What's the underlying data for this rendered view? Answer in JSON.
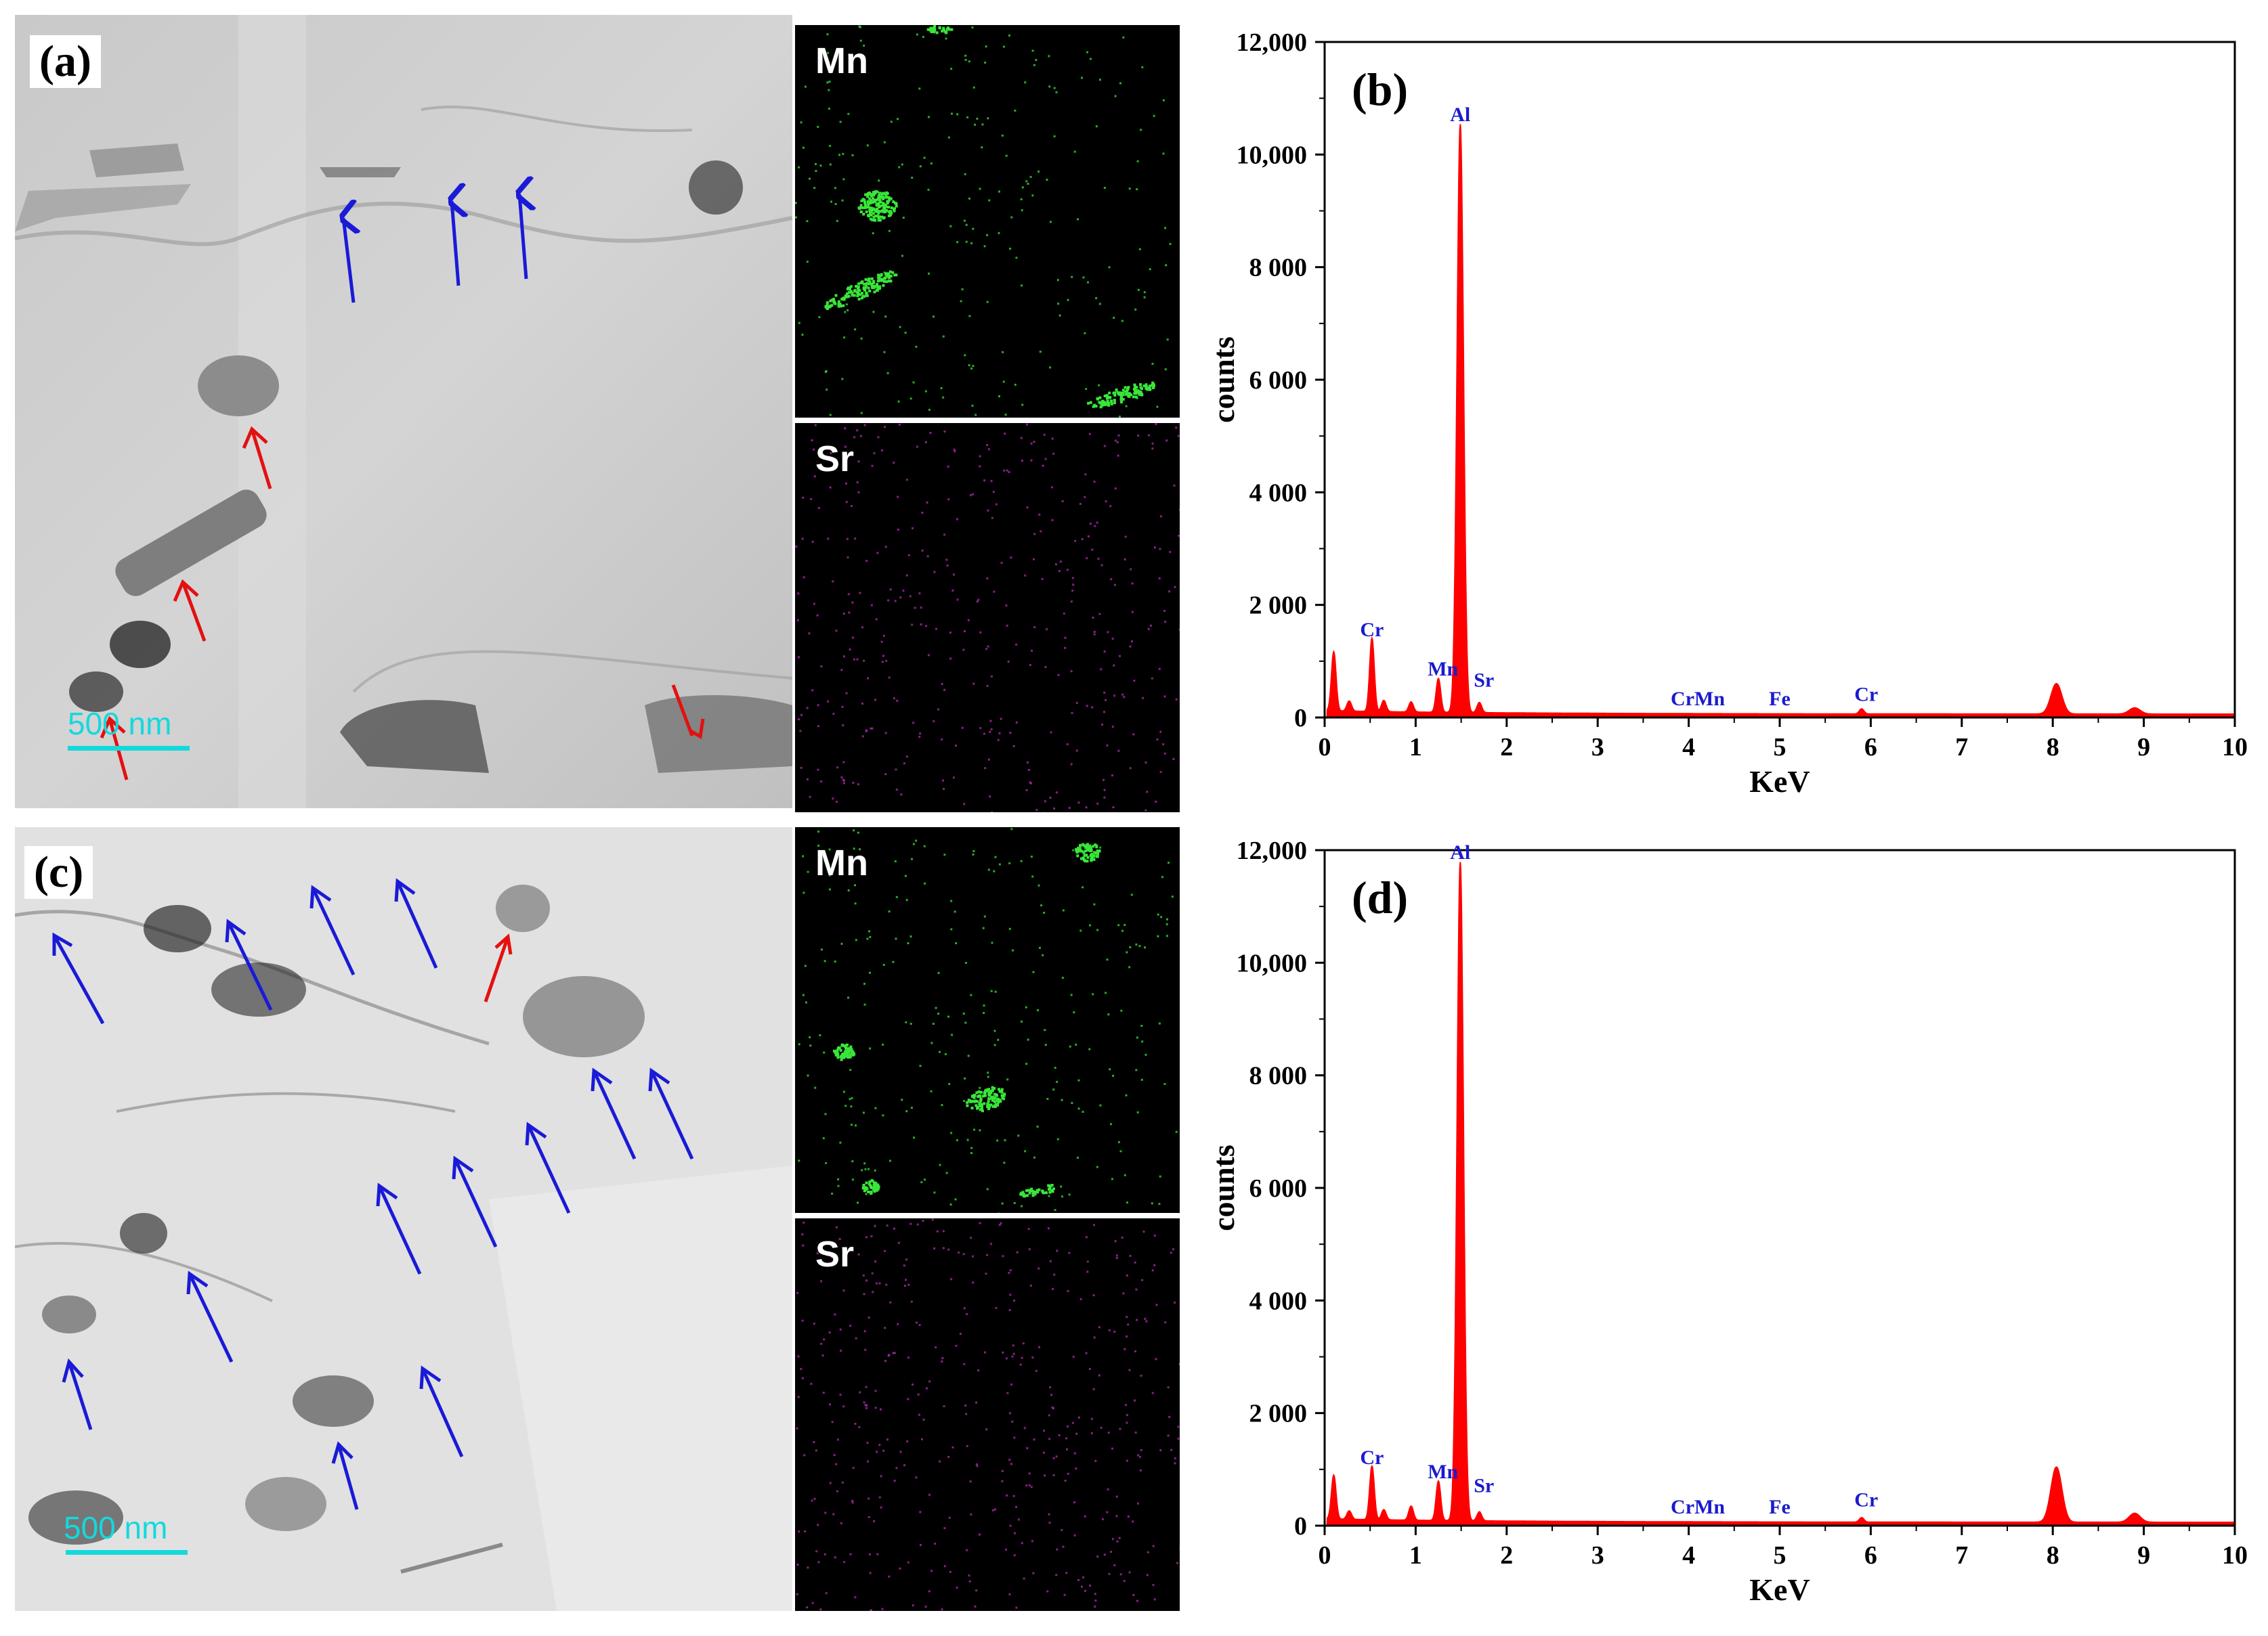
{
  "figure": {
    "panels": {
      "a": {
        "label": "(a)",
        "scale_bar": "500 nm"
      },
      "c": {
        "label": "(c)",
        "scale_bar": "500 nm"
      }
    },
    "maps": {
      "top_mn": "Mn",
      "top_sr": "Sr",
      "bottom_mn": "Mn",
      "bottom_sr": "Sr"
    },
    "colors": {
      "blue_arrow": "#1a1ad8",
      "red_arrow": "#e41010",
      "scale_bar": "#13d9dd",
      "mn_map_dot": "#39e639",
      "sr_map_dot": "#b52bb5",
      "spectrum_fill": "#ff0000",
      "peak_label": "#1a1ad0"
    }
  },
  "chart_data": [
    {
      "panel_label": "(b)",
      "type": "area",
      "xlabel": "KeV",
      "ylabel": "counts",
      "xlim": [
        0,
        10
      ],
      "ylim": [
        0,
        12000
      ],
      "x_ticks": [
        "0",
        "1",
        "2",
        "3",
        "4",
        "5",
        "6",
        "7",
        "8",
        "9",
        "10"
      ],
      "y_ticks": [
        "0",
        "2 000",
        "4 000",
        "6 000",
        "8 000",
        "10,000",
        "12,000"
      ],
      "peaks": [
        {
          "x": 0.1,
          "y": 1050
        },
        {
          "x": 0.27,
          "y": 180
        },
        {
          "x": 0.52,
          "y": 1300
        },
        {
          "x": 0.65,
          "y": 200
        },
        {
          "x": 0.95,
          "y": 180
        },
        {
          "x": 1.25,
          "y": 600
        },
        {
          "x": 1.49,
          "y": 10450
        },
        {
          "x": 1.7,
          "y": 180
        },
        {
          "x": 5.9,
          "y": 90
        },
        {
          "x": 8.04,
          "y": 540
        },
        {
          "x": 8.9,
          "y": 110
        }
      ],
      "annotations": [
        {
          "text": "Al",
          "x": 1.49,
          "y": 10450
        },
        {
          "text": "Cr",
          "x": 0.52,
          "y": 1300
        },
        {
          "text": "Mn",
          "x": 1.3,
          "y": 600
        },
        {
          "text": "Sr",
          "x": 1.75,
          "y": 400
        },
        {
          "text": "CrMn",
          "x": 4.1,
          "y": 70
        },
        {
          "text": "Fe",
          "x": 5.0,
          "y": 70
        },
        {
          "text": "Cr",
          "x": 5.95,
          "y": 150
        }
      ]
    },
    {
      "panel_label": "(d)",
      "type": "area",
      "xlabel": "KeV",
      "ylabel": "counts",
      "xlim": [
        0,
        10
      ],
      "ylim": [
        0,
        12000
      ],
      "x_ticks": [
        "0",
        "1",
        "2",
        "3",
        "4",
        "5",
        "6",
        "7",
        "8",
        "9",
        "10"
      ],
      "y_ticks": [
        "0",
        "2 000",
        "4 000",
        "6 000",
        "8 000",
        "10,000",
        "12,000"
      ],
      "peaks": [
        {
          "x": 0.1,
          "y": 780
        },
        {
          "x": 0.27,
          "y": 150
        },
        {
          "x": 0.52,
          "y": 950
        },
        {
          "x": 0.65,
          "y": 180
        },
        {
          "x": 0.95,
          "y": 250
        },
        {
          "x": 1.25,
          "y": 700
        },
        {
          "x": 1.49,
          "y": 11700
        },
        {
          "x": 1.7,
          "y": 160
        },
        {
          "x": 5.9,
          "y": 80
        },
        {
          "x": 8.04,
          "y": 980
        },
        {
          "x": 8.9,
          "y": 160
        }
      ],
      "annotations": [
        {
          "text": "Al",
          "x": 1.49,
          "y": 11700
        },
        {
          "text": "Cr",
          "x": 0.52,
          "y": 950
        },
        {
          "text": "Mn",
          "x": 1.3,
          "y": 700
        },
        {
          "text": "Sr",
          "x": 1.75,
          "y": 450
        },
        {
          "text": "CrMn",
          "x": 4.1,
          "y": 70
        },
        {
          "text": "Fe",
          "x": 5.0,
          "y": 70
        },
        {
          "text": "Cr",
          "x": 5.95,
          "y": 200
        }
      ]
    }
  ]
}
